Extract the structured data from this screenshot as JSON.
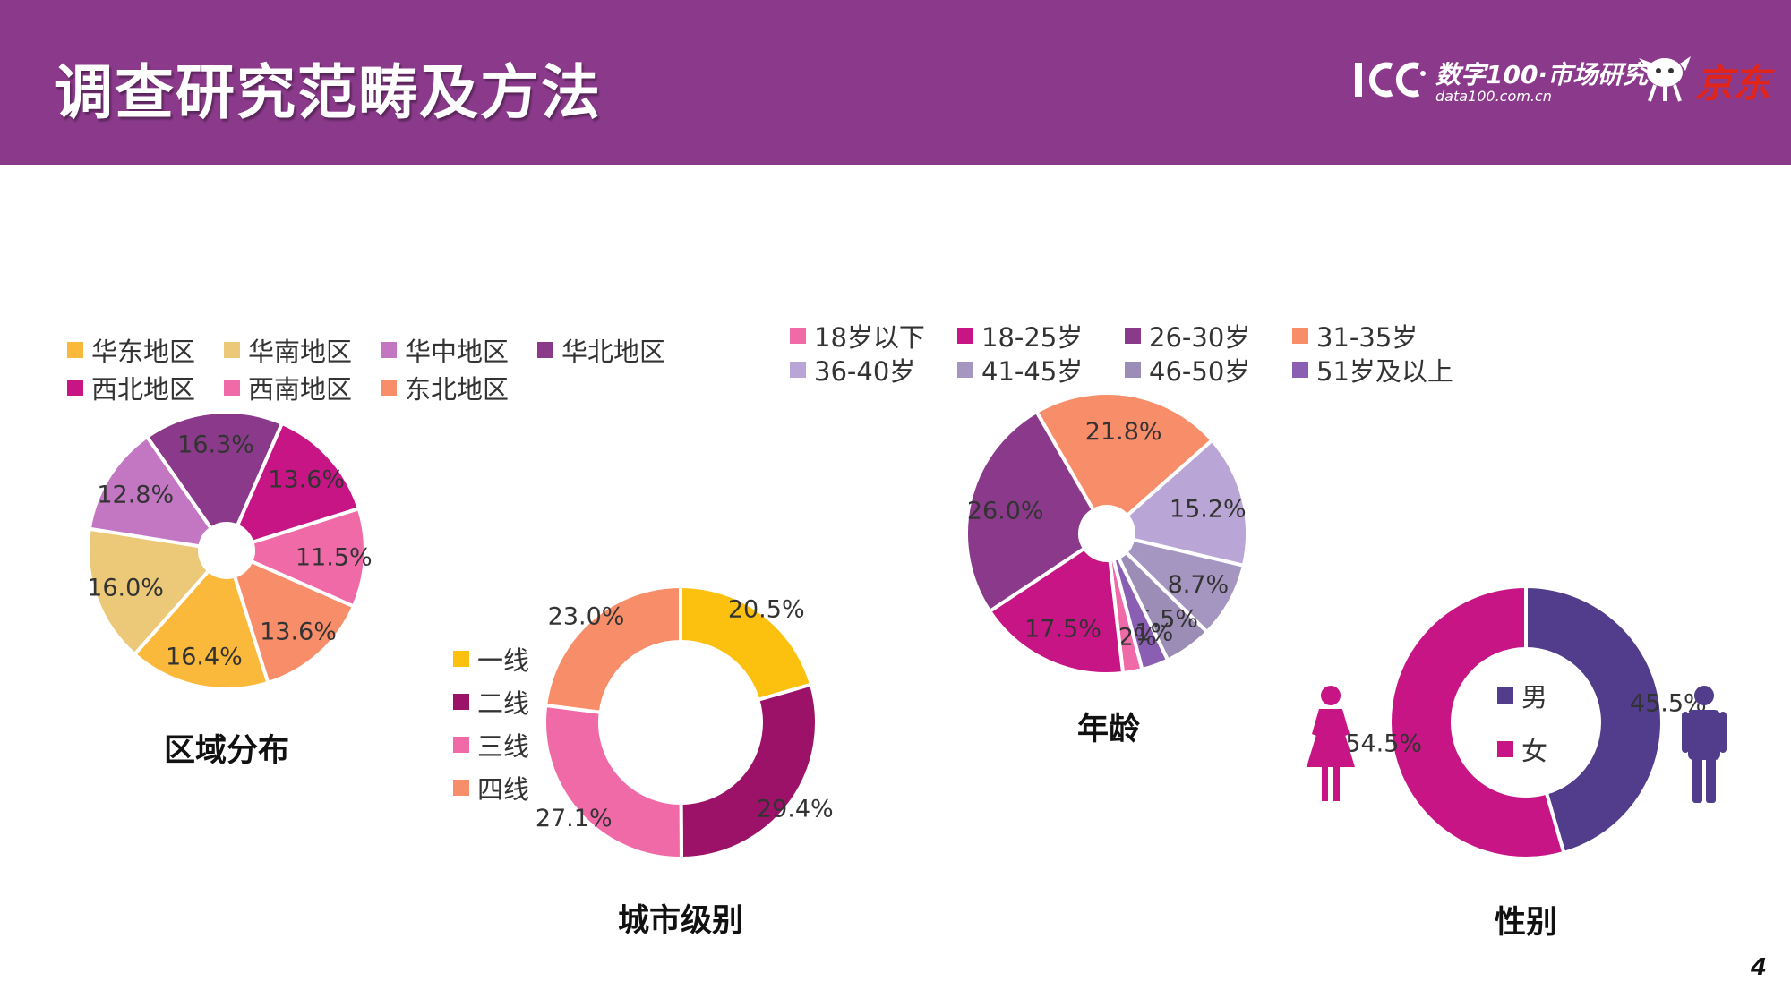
{
  "page": {
    "title": "调查研究范畴及方法",
    "page_number": "4",
    "logo": {
      "mark": "1CC",
      "brand": "数字100·市场研究",
      "url": "data100.com.cn",
      "partner": "京东"
    }
  },
  "colors": {
    "header_bg": "#8b3a8b",
    "title_text": "#ffffff"
  },
  "icons": {
    "female": "female-figure-icon",
    "male": "male-figure-icon",
    "mascot": "jd-dog-icon"
  },
  "chart_data": [
    {
      "id": "region",
      "type": "pie",
      "caption": "区域分布",
      "categories": [
        "华北地区",
        "西北地区",
        "西南地区",
        "东北地区",
        "华东地区",
        "华南地区",
        "华中地区"
      ],
      "values": [
        16.3,
        13.6,
        11.5,
        13.6,
        16.4,
        16.0,
        12.8
      ],
      "value_labels": [
        "16.3%",
        "13.6%",
        "11.5%",
        "13.6%",
        "16.4%",
        "16.0%",
        "12.8%"
      ],
      "colors": [
        "#8b3a8b",
        "#c71585",
        "#f06aa8",
        "#f88d6a",
        "#fbb93b",
        "#ecc978",
        "#c377c3"
      ],
      "legend": {
        "position": "top",
        "items": [
          {
            "label": "华东地区",
            "color": "#fbb93b"
          },
          {
            "label": "华南地区",
            "color": "#ecc978"
          },
          {
            "label": "华中地区",
            "color": "#c377c3"
          },
          {
            "label": "华北地区",
            "color": "#8b3a8b"
          },
          {
            "label": "西北地区",
            "color": "#c71585"
          },
          {
            "label": "西南地区",
            "color": "#f06aa8"
          },
          {
            "label": "东北地区",
            "color": "#f88d6a"
          }
        ]
      }
    },
    {
      "id": "city",
      "type": "pie",
      "caption": "城市级别",
      "categories": [
        "一线",
        "二线",
        "三线",
        "四线"
      ],
      "values": [
        20.5,
        29.4,
        27.1,
        23.0
      ],
      "value_labels": [
        "20.5%",
        "29.4%",
        "27.1%",
        "23.0%"
      ],
      "colors": [
        "#fbc10e",
        "#9b1268",
        "#f06aa8",
        "#f88d6a"
      ],
      "legend": {
        "position": "left",
        "items": [
          {
            "label": "一线",
            "color": "#fbc10e"
          },
          {
            "label": "二线",
            "color": "#9b1268"
          },
          {
            "label": "三线",
            "color": "#f06aa8"
          },
          {
            "label": "四线",
            "color": "#f88d6a"
          }
        ]
      }
    },
    {
      "id": "age",
      "type": "pie",
      "caption": "年龄",
      "categories": [
        "31-35岁",
        "36-40岁",
        "41-45岁",
        "46-50岁",
        "51岁及以上",
        "18岁以下",
        "18-25岁",
        "26-30岁"
      ],
      "values": [
        21.8,
        15.2,
        8.7,
        5.5,
        3.1,
        2.2,
        17.5,
        26.0
      ],
      "value_labels": [
        "21.8%",
        "15.2%",
        "8.7%",
        "5.5%",
        "3.1%",
        "2.2%",
        "17.5%",
        "26.0%"
      ],
      "colors": [
        "#f88d6a",
        "#b9a6d6",
        "#a496c1",
        "#9b8db5",
        "#8a5fb3",
        "#f06aa8",
        "#c71585",
        "#8b3a8b"
      ],
      "legend": {
        "position": "top",
        "items": [
          {
            "label": "18岁以下",
            "color": "#f06aa8"
          },
          {
            "label": "18-25岁",
            "color": "#c71585"
          },
          {
            "label": "26-30岁",
            "color": "#8b3a8b"
          },
          {
            "label": "31-35岁",
            "color": "#f88d6a"
          },
          {
            "label": "36-40岁",
            "color": "#b9a6d6"
          },
          {
            "label": "41-45岁",
            "color": "#a496c1"
          },
          {
            "label": "46-50岁",
            "color": "#9b8db5"
          },
          {
            "label": "51岁及以上",
            "color": "#8a5fb3"
          }
        ]
      }
    },
    {
      "id": "gender",
      "type": "pie",
      "caption": "性别",
      "categories": [
        "男",
        "女"
      ],
      "values": [
        45.5,
        54.5
      ],
      "value_labels": [
        "45.5%",
        "54.5%"
      ],
      "colors": [
        "#523d8c",
        "#c71585"
      ],
      "legend": {
        "position": "center",
        "items": [
          {
            "label": "男",
            "color": "#523d8c"
          },
          {
            "label": "女",
            "color": "#c71585"
          }
        ]
      }
    }
  ]
}
